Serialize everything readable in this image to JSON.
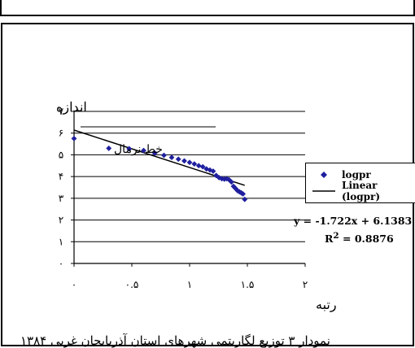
{
  "page": {
    "caption": "نمودار ۳ توزیع لگاریتمی شهرهای استان آذربایجان غربی ۱۳۸۴"
  },
  "chart_data": {
    "type": "scatter",
    "ylabel": "اندازه",
    "xlabel": "رتبه",
    "xlim": [
      0,
      2
    ],
    "ylim": [
      0,
      7
    ],
    "x_ticks": [
      {
        "value": 0,
        "label": "۰"
      },
      {
        "value": 0.5,
        "label": "۰.۵"
      },
      {
        "value": 1,
        "label": "۱"
      },
      {
        "value": 1.5,
        "label": "۱.۵"
      },
      {
        "value": 2,
        "label": "۲"
      }
    ],
    "y_ticks": [
      {
        "value": 0,
        "label": "۰"
      },
      {
        "value": 1,
        "label": "۱"
      },
      {
        "value": 2,
        "label": "۲"
      },
      {
        "value": 3,
        "label": "۳"
      },
      {
        "value": 4,
        "label": "۴"
      },
      {
        "value": 5,
        "label": "۵"
      },
      {
        "value": 6,
        "label": "۶"
      },
      {
        "value": 7,
        "label": "۷"
      }
    ],
    "grid": "horizontal",
    "legend_position": "right",
    "series": [
      {
        "name": "logpr",
        "marker": "diamond",
        "color": "#1f1f9f",
        "x": [
          0,
          0.301,
          0.477,
          0.602,
          0.699,
          0.778,
          0.845,
          0.903,
          0.954,
          1.0,
          1.041,
          1.079,
          1.114,
          1.146,
          1.176,
          1.204,
          1.23,
          1.255,
          1.279,
          1.301,
          1.322,
          1.342,
          1.362,
          1.38,
          1.398,
          1.415,
          1.431,
          1.447,
          1.462,
          1.477
        ],
        "y": [
          5.75,
          5.3,
          5.28,
          5.2,
          5.08,
          4.98,
          4.88,
          4.8,
          4.72,
          4.65,
          4.58,
          4.5,
          4.45,
          4.35,
          4.3,
          4.25,
          4.05,
          3.95,
          3.9,
          3.88,
          3.9,
          3.85,
          3.75,
          3.55,
          3.45,
          3.35,
          3.3,
          3.25,
          3.2,
          2.95
        ]
      }
    ],
    "trendline": {
      "name": "Linear (logpr)",
      "type": "linear",
      "slope": -1.722,
      "intercept": 6.1383,
      "x_range": [
        0,
        1.477
      ],
      "equation": "y = -1.722x + 6.1383",
      "r2_label": "R",
      "r2_sup": "2",
      "r2_value": " = 0.8876",
      "color": "#000000"
    },
    "annotation": "خط نرمال"
  }
}
